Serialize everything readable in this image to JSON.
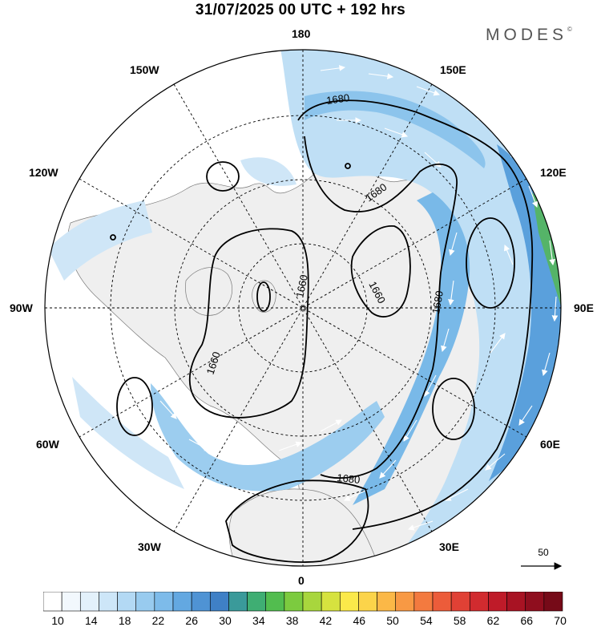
{
  "header": {
    "title": "31/07/2025  00 UTC  + 192 hrs",
    "brand": "MODES",
    "brand_mark": "©"
  },
  "labels": {
    "top": "180",
    "bottom": "0",
    "left": "90W",
    "right": "90E",
    "upper_left": "150W",
    "upper_right": "150E",
    "mid_upper_left": "120W",
    "mid_upper_right": "120E",
    "mid_lower_left": "60W",
    "mid_lower_right": "60E",
    "lower_left": "30W",
    "lower_right": "30E"
  },
  "contours": {
    "c1": "1680",
    "c2": "1680",
    "c3": "1680",
    "c4": "1680",
    "c5": "1660",
    "c6": "1660",
    "c7": "1660"
  },
  "reference_vector": {
    "value": "50"
  },
  "colorbar": {
    "ticks": [
      "10",
      "14",
      "18",
      "22",
      "26",
      "30",
      "34",
      "38",
      "42",
      "46",
      "50",
      "54",
      "58",
      "62",
      "66",
      "70"
    ],
    "colors": [
      "#ffffff",
      "#f2f8fd",
      "#e3f1fb",
      "#cde6f8",
      "#b3d9f4",
      "#98cbef",
      "#7dbbea",
      "#63a8e1",
      "#4f93d4",
      "#3f80c6",
      "#3a9a9a",
      "#3fae73",
      "#52bd4f",
      "#7ccb3f",
      "#a8d63d",
      "#d6e23f",
      "#fbe94a",
      "#fcd44a",
      "#fbb847",
      "#f89944",
      "#f37a3f",
      "#ec5c3a",
      "#e04135",
      "#d12b2f",
      "#bf1b29",
      "#a81323",
      "#8f0e1e",
      "#760a18"
    ]
  }
}
